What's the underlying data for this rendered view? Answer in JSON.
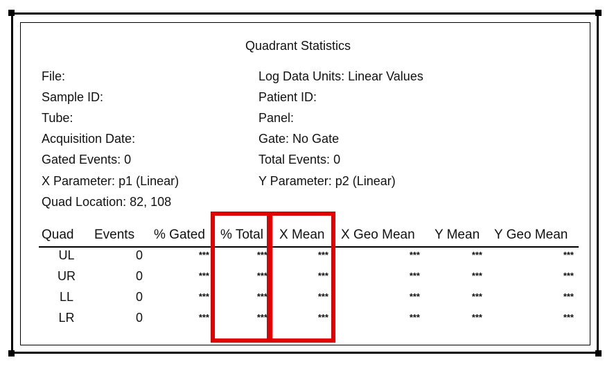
{
  "title": "Quadrant Statistics",
  "left_info": [
    {
      "label": "File:",
      "value": ""
    },
    {
      "label": "Sample ID:",
      "value": ""
    },
    {
      "label": "Tube:",
      "value": ""
    },
    {
      "label": "Acquisition Date:",
      "value": ""
    },
    {
      "label": "Gated Events:",
      "value": "0"
    },
    {
      "label": "X Parameter:",
      "value": "p1 (Linear)"
    },
    {
      "label": "Quad Location:",
      "value": "82, 108"
    }
  ],
  "right_info": [
    {
      "label": "Log Data Units:",
      "value": "Linear Values"
    },
    {
      "label": "Patient ID:",
      "value": ""
    },
    {
      "label": "Panel:",
      "value": ""
    },
    {
      "label": "Gate:",
      "value": "No Gate"
    },
    {
      "label": "Total Events:",
      "value": "0"
    },
    {
      "label": "Y Parameter:",
      "value": "p2 (Linear)"
    }
  ],
  "table": {
    "headers": [
      "Quad",
      "Events",
      "% Gated",
      "% Total",
      "X Mean",
      "X Geo Mean",
      "Y Mean",
      "Y Geo Mean"
    ],
    "rows": [
      [
        "UL",
        "0",
        "***",
        "***",
        "***",
        "***",
        "***",
        "***"
      ],
      [
        "UR",
        "0",
        "***",
        "***",
        "***",
        "***",
        "***",
        "***"
      ],
      [
        "LL",
        "0",
        "***",
        "***",
        "***",
        "***",
        "***",
        "***"
      ],
      [
        "LR",
        "0",
        "***",
        "***",
        "***",
        "***",
        "***",
        "***"
      ]
    ]
  },
  "colors": {
    "highlight": "#e00000",
    "frame": "#000000"
  }
}
